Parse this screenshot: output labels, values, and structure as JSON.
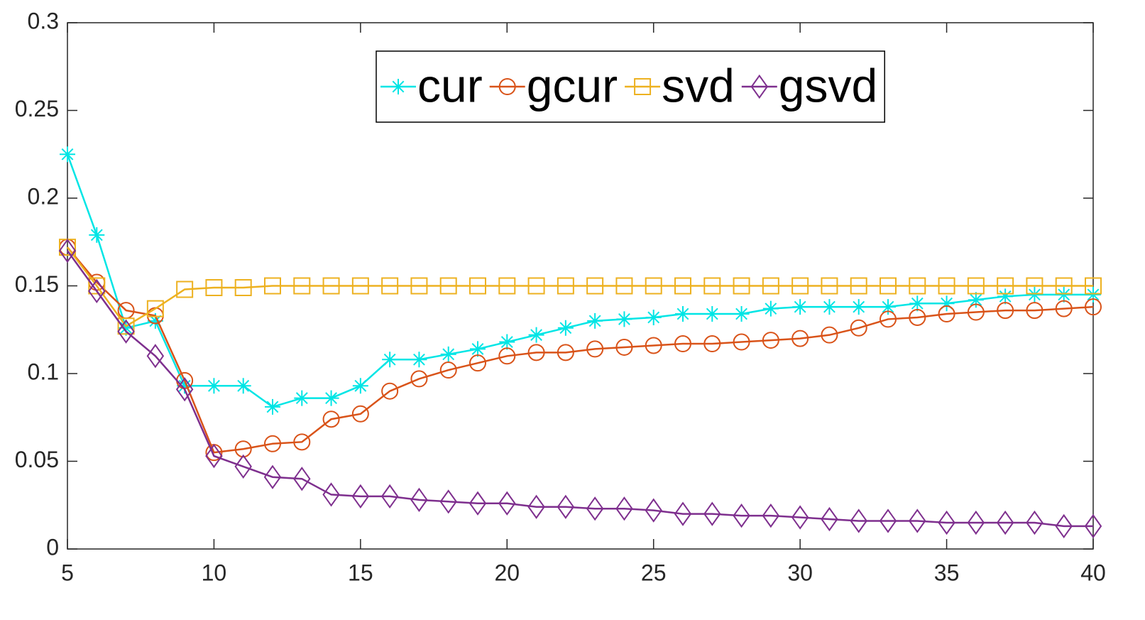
{
  "chart_data": {
    "type": "line",
    "x": [
      5,
      6,
      7,
      8,
      9,
      10,
      11,
      12,
      13,
      14,
      15,
      16,
      17,
      18,
      19,
      20,
      21,
      22,
      23,
      24,
      25,
      26,
      27,
      28,
      29,
      30,
      31,
      32,
      33,
      34,
      35,
      36,
      37,
      38,
      39,
      40
    ],
    "series": [
      {
        "name": "cur",
        "color": "#00e5e5",
        "marker": "star",
        "values": [
          0.225,
          0.179,
          0.126,
          0.13,
          0.093,
          0.093,
          0.093,
          0.081,
          0.086,
          0.086,
          0.093,
          0.108,
          0.108,
          0.111,
          0.114,
          0.118,
          0.122,
          0.126,
          0.13,
          0.131,
          0.132,
          0.134,
          0.134,
          0.134,
          0.137,
          0.138,
          0.138,
          0.138,
          0.138,
          0.14,
          0.14,
          0.142,
          0.144,
          0.145,
          0.145,
          0.145
        ]
      },
      {
        "name": "gcur",
        "color": "#d95319",
        "marker": "circle",
        "values": [
          0.172,
          0.152,
          0.136,
          0.133,
          0.096,
          0.055,
          0.057,
          0.06,
          0.061,
          0.074,
          0.077,
          0.09,
          0.097,
          0.102,
          0.106,
          0.11,
          0.112,
          0.112,
          0.114,
          0.115,
          0.116,
          0.117,
          0.117,
          0.118,
          0.119,
          0.12,
          0.122,
          0.126,
          0.131,
          0.132,
          0.134,
          0.135,
          0.136,
          0.136,
          0.137,
          0.138
        ]
      },
      {
        "name": "svd",
        "color": "#edb120",
        "marker": "square",
        "values": [
          0.172,
          0.15,
          0.127,
          0.137,
          0.148,
          0.149,
          0.149,
          0.15,
          0.15,
          0.15,
          0.15,
          0.15,
          0.15,
          0.15,
          0.15,
          0.15,
          0.15,
          0.15,
          0.15,
          0.15,
          0.15,
          0.15,
          0.15,
          0.15,
          0.15,
          0.15,
          0.15,
          0.15,
          0.15,
          0.15,
          0.15,
          0.15,
          0.15,
          0.15,
          0.15,
          0.15
        ]
      },
      {
        "name": "gsvd",
        "color": "#7e2f8e",
        "marker": "diamond",
        "values": [
          0.17,
          0.147,
          0.124,
          0.11,
          0.091,
          0.053,
          0.047,
          0.041,
          0.04,
          0.031,
          0.03,
          0.03,
          0.028,
          0.027,
          0.026,
          0.026,
          0.024,
          0.024,
          0.023,
          0.023,
          0.022,
          0.02,
          0.02,
          0.019,
          0.019,
          0.018,
          0.017,
          0.016,
          0.016,
          0.016,
          0.015,
          0.015,
          0.015,
          0.015,
          0.013,
          0.013
        ]
      }
    ],
    "xlim": [
      5,
      40
    ],
    "xticks": [
      5,
      10,
      15,
      20,
      25,
      30,
      35,
      40
    ],
    "ylim": [
      0,
      0.3
    ],
    "yticks": [
      0,
      0.05,
      0.1,
      0.15,
      0.2,
      0.25,
      0.3
    ],
    "legend": "top"
  }
}
